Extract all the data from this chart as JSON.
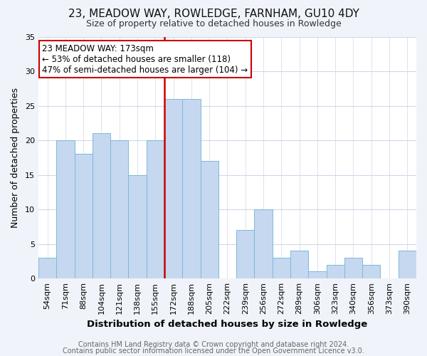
{
  "title": "23, MEADOW WAY, ROWLEDGE, FARNHAM, GU10 4DY",
  "subtitle": "Size of property relative to detached houses in Rowledge",
  "xlabel": "Distribution of detached houses by size in Rowledge",
  "ylabel": "Number of detached properties",
  "bin_labels": [
    "54sqm",
    "71sqm",
    "88sqm",
    "104sqm",
    "121sqm",
    "138sqm",
    "155sqm",
    "172sqm",
    "188sqm",
    "205sqm",
    "222sqm",
    "239sqm",
    "256sqm",
    "272sqm",
    "289sqm",
    "306sqm",
    "323sqm",
    "340sqm",
    "356sqm",
    "373sqm",
    "390sqm"
  ],
  "bar_values": [
    3,
    20,
    18,
    21,
    20,
    15,
    20,
    26,
    26,
    17,
    0,
    7,
    10,
    3,
    4,
    1,
    2,
    3,
    2,
    0,
    4
  ],
  "bar_color": "#c5d8f0",
  "bar_edge_color": "#7fb8d8",
  "marker_line_index": 7,
  "marker_line_color": "#cc0000",
  "ylim": [
    0,
    35
  ],
  "yticks": [
    0,
    5,
    10,
    15,
    20,
    25,
    30,
    35
  ],
  "annotation_text": "23 MEADOW WAY: 173sqm\n← 53% of detached houses are smaller (118)\n47% of semi-detached houses are larger (104) →",
  "annotation_box_facecolor": "#ffffff",
  "annotation_box_edgecolor": "#cc0000",
  "plot_bg_color": "#ffffff",
  "fig_bg_color": "#f0f4fa",
  "footer_line1": "Contains HM Land Registry data © Crown copyright and database right 2024.",
  "footer_line2": "Contains public sector information licensed under the Open Government Licence v3.0.",
  "title_fontsize": 11,
  "subtitle_fontsize": 9,
  "ylabel_fontsize": 9,
  "xlabel_fontsize": 9.5,
  "tick_fontsize": 8,
  "annotation_fontsize": 8.5,
  "footer_fontsize": 7
}
